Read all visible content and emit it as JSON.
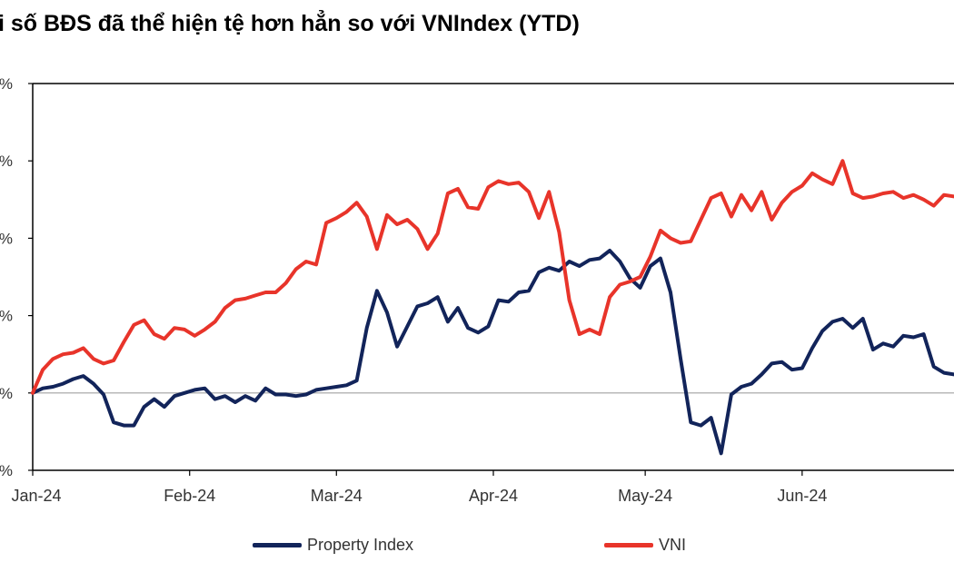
{
  "chart_data": {
    "type": "line",
    "title": "i số BĐS đã thể hiện tệ hơn hẳn so với VNIndex (YTD)",
    "xlabel": "",
    "ylabel": "",
    "x_tick_labels": [
      "Jan-24",
      "Feb-24",
      "Mar-24",
      "Apr-24",
      "May-24",
      "Jun-24"
    ],
    "y_tick_labels": [
      "%",
      "%",
      "%",
      "%",
      "%",
      "%"
    ],
    "ylim": [
      -5,
      20
    ],
    "grid": false,
    "legend_position": "bottom",
    "series": [
      {
        "name": "Property Index",
        "color": "#12245a",
        "x": [
          0,
          2,
          4,
          6,
          8,
          10,
          12,
          14,
          16,
          18,
          20,
          22,
          24,
          26,
          28,
          30,
          32,
          34,
          36,
          38,
          40,
          42,
          44,
          46,
          48,
          50,
          52,
          54,
          56,
          58,
          60,
          62,
          64,
          66,
          68,
          70,
          72,
          74,
          76,
          78,
          80,
          82,
          84,
          86,
          88,
          90,
          92,
          94,
          96,
          98,
          100,
          102,
          104,
          106,
          108,
          110,
          112,
          114,
          116,
          118,
          120,
          122,
          124,
          126,
          128,
          130,
          132,
          134,
          136,
          138,
          140,
          142,
          144,
          146,
          148,
          150,
          152,
          154,
          156,
          158,
          160,
          162,
          164,
          166,
          168,
          170,
          172,
          174,
          176,
          178,
          180,
          182
        ],
        "values": [
          0.0,
          0.3,
          0.4,
          0.6,
          0.9,
          1.1,
          0.6,
          -0.1,
          -1.9,
          -2.1,
          -2.1,
          -0.9,
          -0.4,
          -0.9,
          -0.2,
          0.0,
          0.2,
          0.3,
          -0.4,
          -0.2,
          -0.6,
          -0.2,
          -0.5,
          0.3,
          -0.1,
          -0.1,
          -0.2,
          -0.1,
          0.2,
          0.3,
          0.4,
          0.5,
          0.8,
          4.2,
          6.6,
          5.2,
          3.0,
          4.3,
          5.6,
          5.8,
          6.2,
          4.6,
          5.5,
          4.2,
          3.9,
          4.3,
          6.0,
          5.9,
          6.5,
          6.6,
          7.8,
          8.1,
          7.9,
          8.5,
          8.2,
          8.6,
          8.7,
          9.2,
          8.5,
          7.4,
          6.8,
          8.2,
          8.7,
          6.5,
          2.2,
          -1.9,
          -2.1,
          -1.6,
          -3.9,
          -0.1,
          0.4,
          0.6,
          1.2,
          1.9,
          2.0,
          1.5,
          1.6,
          2.9,
          4.0,
          4.6,
          4.8,
          4.2,
          4.8,
          2.8,
          3.2,
          3.0,
          3.7,
          3.6,
          3.8,
          1.7,
          1.3,
          1.2
        ]
      },
      {
        "name": "VNI",
        "color": "#e8342a",
        "x": [
          0,
          2,
          4,
          6,
          8,
          10,
          12,
          14,
          16,
          18,
          20,
          22,
          24,
          26,
          28,
          30,
          32,
          34,
          36,
          38,
          40,
          42,
          44,
          46,
          48,
          50,
          52,
          54,
          56,
          58,
          60,
          62,
          64,
          66,
          68,
          70,
          72,
          74,
          76,
          78,
          80,
          82,
          84,
          86,
          88,
          90,
          92,
          94,
          96,
          98,
          100,
          102,
          104,
          106,
          108,
          110,
          112,
          114,
          116,
          118,
          120,
          122,
          124,
          126,
          128,
          130,
          132,
          134,
          136,
          138,
          140,
          142,
          144,
          146,
          148,
          150,
          152,
          154,
          156,
          158,
          160,
          162,
          164,
          166,
          168,
          170,
          172,
          174,
          176,
          178,
          180,
          182
        ],
        "values": [
          0.0,
          1.5,
          2.2,
          2.5,
          2.6,
          2.9,
          2.2,
          1.9,
          2.1,
          3.3,
          4.4,
          4.7,
          3.8,
          3.5,
          4.2,
          4.1,
          3.7,
          4.1,
          4.6,
          5.5,
          6.0,
          6.1,
          6.3,
          6.5,
          6.5,
          7.1,
          8.0,
          8.5,
          8.3,
          11.0,
          11.3,
          11.7,
          12.3,
          11.4,
          9.3,
          11.5,
          10.9,
          11.2,
          10.6,
          9.3,
          10.3,
          12.9,
          13.2,
          12.0,
          11.9,
          13.3,
          13.7,
          13.5,
          13.6,
          13.0,
          11.3,
          13.0,
          10.4,
          6.0,
          3.8,
          4.1,
          3.8,
          6.2,
          7.0,
          7.2,
          7.5,
          8.8,
          10.5,
          10.0,
          9.7,
          9.8,
          11.2,
          12.6,
          12.9,
          11.4,
          12.8,
          11.8,
          13.0,
          11.2,
          12.3,
          13.0,
          13.4,
          14.2,
          13.8,
          13.5,
          15.0,
          12.9,
          12.6,
          12.7,
          12.9,
          13.0,
          12.6,
          12.8,
          12.5,
          12.1,
          12.8,
          12.7
        ]
      }
    ]
  }
}
